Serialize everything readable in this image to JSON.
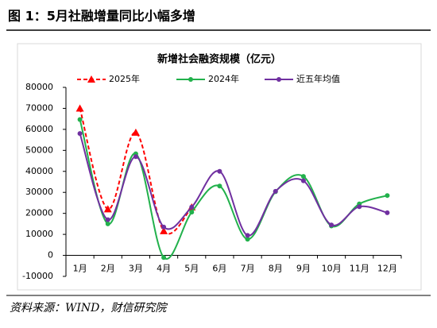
{
  "figure_title": "图 1：5月社融增量同比小幅多增",
  "source": "资料来源：WIND，财信研究院",
  "chart_data": {
    "type": "line",
    "title": "新增社会融资规模（亿元）",
    "categories": [
      "1月",
      "2月",
      "3月",
      "4月",
      "5月",
      "6月",
      "7月",
      "8月",
      "9月",
      "10月",
      "11月",
      "12月"
    ],
    "series": [
      {
        "name": "2025年",
        "color": "#ff0000",
        "dash": true,
        "marker": "triangle",
        "values": [
          70000,
          22000,
          58500,
          11600,
          22900,
          null,
          null,
          null,
          null,
          null,
          null,
          null
        ]
      },
      {
        "name": "2024年",
        "color": "#22b14c",
        "dash": false,
        "marker": "circle",
        "values": [
          64700,
          15000,
          48400,
          -1000,
          20600,
          33000,
          7700,
          30300,
          37600,
          14000,
          24500,
          28500
        ]
      },
      {
        "name": "近五年均值",
        "color": "#7030a0",
        "dash": false,
        "marker": "circle",
        "values": [
          58000,
          17000,
          47000,
          13500,
          23000,
          40000,
          9500,
          30500,
          35500,
          14500,
          23200,
          20300
        ]
      }
    ],
    "ylim": [
      -10000,
      80000
    ],
    "yticks": [
      -10000,
      0,
      10000,
      20000,
      30000,
      40000,
      50000,
      60000,
      70000,
      80000
    ],
    "smooth": true
  }
}
